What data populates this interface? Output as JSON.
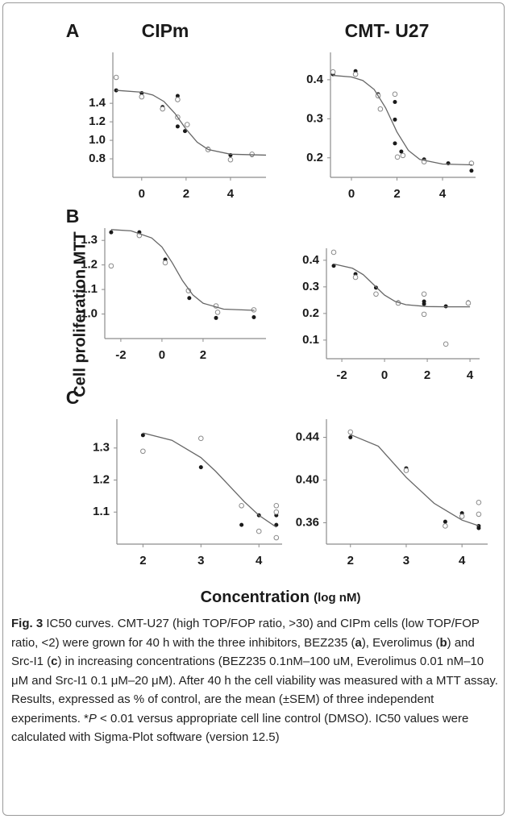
{
  "figure": {
    "columns": [
      "CIPm",
      "CMT- U27"
    ],
    "y_label": "Cell proliferation MTT",
    "x_label": "Concentration",
    "x_unit": "(log nM)"
  },
  "chart_data": [
    {
      "type": "scatter",
      "panel": "A",
      "xlim": [
        -1.3,
        5.6
      ],
      "ylim": [
        0.6,
        1.95
      ],
      "xticks": [
        0,
        2,
        4
      ],
      "yticks": [
        1.4,
        1.2,
        {
          "value": 1,
          "label": "1.0"
        },
        0.8
      ],
      "series": [
        {
          "marker": "filled",
          "color": "#1a1a1a",
          "x": [
            -1.15,
            0,
            0.94,
            1.62,
            1.62,
            1.95,
            2.99,
            4,
            4.97
          ],
          "values": [
            1.54,
            1.51,
            1.36,
            1.48,
            1.15,
            1.1,
            0.91,
            0.84,
            0.84
          ]
        },
        {
          "marker": "open",
          "color": "#8a8a8a",
          "x": [
            -1.15,
            0,
            0.94,
            1.62,
            1.62,
            2.05,
            2.99,
            4,
            4.97
          ],
          "values": [
            1.68,
            1.47,
            1.34,
            1.44,
            1.25,
            1.17,
            0.9,
            0.79,
            0.85
          ]
        },
        {
          "marker": "line",
          "color": "#666666",
          "x": [
            -1.15,
            0,
            0.5,
            1,
            1.5,
            2,
            2.5,
            3,
            4,
            5.6
          ],
          "values": [
            1.54,
            1.52,
            1.49,
            1.42,
            1.29,
            1.12,
            0.98,
            0.9,
            0.85,
            0.84
          ]
        }
      ]
    },
    {
      "type": "scatter",
      "xlim": [
        -0.92,
        5.45
      ],
      "ylim": [
        0.15,
        0.47
      ],
      "xticks": [
        0,
        2,
        4
      ],
      "yticks": [
        0.4,
        0.3,
        0.2
      ],
      "series": [
        {
          "marker": "filled",
          "color": "#1a1a1a",
          "x": [
            -0.81,
            0.18,
            1.17,
            1.91,
            1.91,
            1.91,
            2.19,
            3.19,
            4.25,
            5.27
          ],
          "values": [
            0.414,
            0.422,
            0.363,
            0.343,
            0.298,
            0.237,
            0.216,
            0.196,
            0.186,
            0.167
          ]
        },
        {
          "marker": "open",
          "color": "#8a8a8a",
          "x": [
            -0.81,
            0.18,
            1.17,
            1.27,
            1.91,
            2.02,
            2.26,
            3.19,
            5.27
          ],
          "values": [
            0.42,
            0.414,
            0.359,
            0.325,
            0.363,
            0.202,
            0.206,
            0.19,
            0.186
          ]
        },
        {
          "marker": "line",
          "color": "#666666",
          "x": [
            -0.81,
            0,
            0.5,
            1,
            1.5,
            2,
            2.5,
            3,
            4,
            5.3
          ],
          "values": [
            0.411,
            0.407,
            0.398,
            0.375,
            0.328,
            0.266,
            0.219,
            0.196,
            0.184,
            0.182
          ]
        }
      ]
    },
    {
      "type": "scatter",
      "panel": "B",
      "xlim": [
        -2.78,
        5.06
      ],
      "ylim": [
        0.9,
        1.35
      ],
      "xticks": [
        -2,
        0,
        2
      ],
      "yticks": [
        1.3,
        1.2,
        1.1,
        {
          "value": 1,
          "label": "1.0"
        }
      ],
      "series": [
        {
          "marker": "filled",
          "color": "#1a1a1a",
          "x": [
            -2.47,
            -1.1,
            0.16,
            1.33,
            2.63,
            4.47
          ],
          "values": [
            1.333,
            1.333,
            1.222,
            1.065,
            0.984,
            0.987
          ]
        },
        {
          "marker": "open",
          "color": "#8a8a8a",
          "x": [
            -2.47,
            -1.1,
            0.16,
            1.29,
            2.63,
            2.71,
            4.47
          ],
          "values": [
            1.196,
            1.32,
            1.209,
            1.095,
            1.033,
            1.007,
            1.017
          ]
        },
        {
          "marker": "line",
          "color": "#666666",
          "x": [
            -2.47,
            -1.5,
            -0.5,
            0,
            0.5,
            1,
            1.5,
            2,
            3,
            4.5
          ],
          "values": [
            1.344,
            1.339,
            1.31,
            1.273,
            1.209,
            1.136,
            1.078,
            1.044,
            1.02,
            1.015
          ]
        }
      ]
    },
    {
      "type": "scatter",
      "xlim": [
        -2.72,
        4.45
      ],
      "ylim": [
        0.03,
        0.445
      ],
      "xticks": [
        -2,
        0,
        2,
        4
      ],
      "yticks": [
        0.4,
        0.3,
        0.2,
        0.1
      ],
      "series": [
        {
          "marker": "filled",
          "color": "#1a1a1a",
          "x": [
            -2.38,
            -1.36,
            -0.4,
            0.64,
            1.85,
            1.85,
            2.87,
            3.92
          ],
          "values": [
            0.379,
            0.348,
            0.297,
            0.242,
            0.245,
            0.236,
            0.227,
            0.242
          ]
        },
        {
          "marker": "open",
          "color": "#8a8a8a",
          "x": [
            -2.38,
            -1.36,
            -0.4,
            0.64,
            1.85,
            1.85,
            2.87,
            3.92
          ],
          "values": [
            0.43,
            0.336,
            0.273,
            0.239,
            0.273,
            0.197,
            0.085,
            0.239
          ]
        },
        {
          "marker": "line",
          "color": "#666666",
          "x": [
            -2.38,
            -1.5,
            -1,
            -0.5,
            0,
            0.5,
            1,
            2,
            3,
            4
          ],
          "values": [
            0.386,
            0.37,
            0.346,
            0.3075,
            0.269,
            0.245,
            0.233,
            0.226,
            0.225,
            0.225
          ]
        }
      ]
    },
    {
      "type": "scatter",
      "panel": "C",
      "xlim": [
        1.55,
        4.4
      ],
      "ylim": [
        1.0,
        1.39
      ],
      "xticks": [
        2,
        3,
        4
      ],
      "yticks": [
        1.3,
        1.2,
        1.1
      ],
      "series": [
        {
          "marker": "filled",
          "color": "#1a1a1a",
          "x": [
            2,
            3,
            3.7,
            4,
            4.3,
            4.3
          ],
          "values": [
            1.34,
            1.24,
            1.06,
            1.09,
            1.09,
            1.06
          ]
        },
        {
          "marker": "open",
          "color": "#8a8a8a",
          "x": [
            2,
            3,
            3.7,
            4,
            4.3,
            4.3,
            4.3
          ],
          "values": [
            1.29,
            1.33,
            1.12,
            1.04,
            1.12,
            1.1,
            1.02
          ]
        },
        {
          "marker": "line",
          "color": "#666666",
          "x": [
            2,
            2.5,
            3,
            3.25,
            3.5,
            3.75,
            4,
            4.3
          ],
          "values": [
            1.347,
            1.324,
            1.27,
            1.228,
            1.18,
            1.132,
            1.09,
            1.053
          ]
        }
      ]
    },
    {
      "type": "scatter",
      "xlim": [
        1.57,
        4.46
      ],
      "ylim": [
        0.34,
        0.457
      ],
      "xticks": [
        2,
        3,
        4
      ],
      "yticks": [
        0.44,
        {
          "value": 0.4,
          "label": "0.40"
        },
        0.36
      ],
      "series": [
        {
          "marker": "filled",
          "color": "#1a1a1a",
          "x": [
            2,
            3,
            3.7,
            4,
            4.3,
            4.3
          ],
          "values": [
            0.44,
            0.411,
            0.361,
            0.369,
            0.357,
            0.355
          ]
        },
        {
          "marker": "open",
          "color": "#8a8a8a",
          "x": [
            2,
            3,
            3.7,
            4,
            4.3,
            4.3
          ],
          "values": [
            0.445,
            0.409,
            0.357,
            0.366,
            0.379,
            0.368
          ]
        },
        {
          "marker": "line",
          "color": "#666666",
          "x": [
            2,
            2.5,
            3,
            3.5,
            4,
            4.3
          ],
          "values": [
            0.4425,
            0.4317,
            0.4025,
            0.3782,
            0.3625,
            0.3572
          ]
        }
      ]
    }
  ],
  "caption": {
    "label": "Fig. 3",
    "parts": [
      {
        "text": " IC50 curves. CMT-U27 (high TOP/FOP ratio, >30) and CIPm cells (low TOP/FOP ratio, <2) were grown for 40 h with the three inhibitors, BEZ235 (",
        "style": "normal"
      },
      {
        "text": "a",
        "style": "bold"
      },
      {
        "text": "), Everolimus (",
        "style": "normal"
      },
      {
        "text": "b",
        "style": "bold"
      },
      {
        "text": ") and Src-I1 (",
        "style": "normal"
      },
      {
        "text": "c",
        "style": "bold"
      },
      {
        "text": ") in increasing concentrations (BEZ235 0.1nM–100 uM, Everolimus 0.01 nM–10 μM and Src-I1 0.1 μM–20 μM). After 40 h the cell viability was measured with a MTT assay. Results, expressed as % of control, are the mean (±SEM) of three independent experiments. *",
        "style": "normal"
      },
      {
        "text": "P",
        "style": "italic"
      },
      {
        "text": " < 0.01 versus appropriate cell line control (DMSO). IC50 values were calculated with Sigma-Plot software (version 12.5)",
        "style": "normal"
      }
    ]
  }
}
